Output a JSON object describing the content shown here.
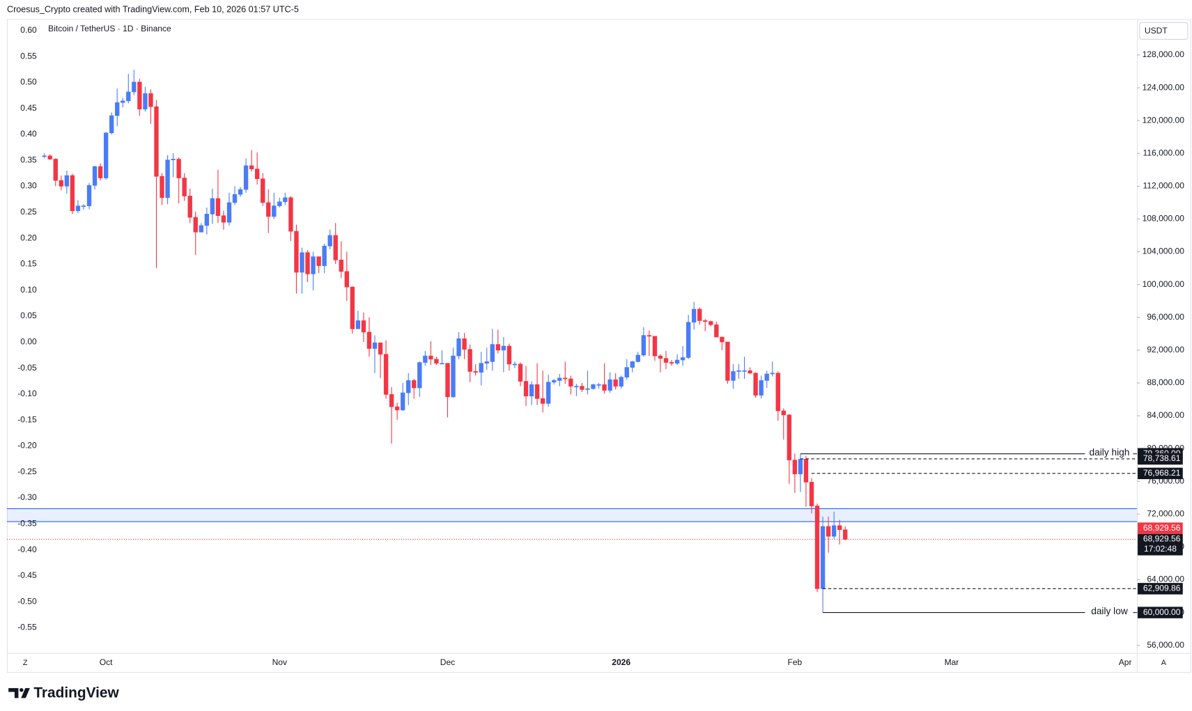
{
  "header": "Croesus_Crypto created with TradingView.com, Feb 10, 2026 01:57 UTC-5",
  "branding": "TradingView",
  "chart_data": {
    "type": "candlestick",
    "title": "Bitcoin / TetherUS · 1D · Binance",
    "currency": "USDT",
    "x_axis_buttons": {
      "left": "Z",
      "right": "A"
    },
    "up_color": "#4a7cf6",
    "down_color": "#f23645",
    "grid": false,
    "categories": [
      null,
      null,
      null,
      null,
      null,
      null,
      null,
      null,
      null,
      null,
      null,
      "Oct",
      null,
      null,
      null,
      null,
      null,
      null,
      null,
      null,
      null,
      null,
      null,
      null,
      null,
      null,
      null,
      null,
      null,
      null,
      null,
      null,
      null,
      null,
      null,
      null,
      null,
      null,
      null,
      null,
      null,
      null,
      "Nov",
      null,
      null,
      null,
      null,
      null,
      null,
      null,
      null,
      null,
      null,
      null,
      null,
      null,
      null,
      null,
      null,
      null,
      null,
      null,
      null,
      null,
      null,
      null,
      null,
      null,
      null,
      null,
      null,
      null,
      "Dec",
      null,
      null,
      null,
      null,
      null,
      null,
      null,
      null,
      null,
      null,
      null,
      null,
      null,
      null,
      null,
      null,
      null,
      null,
      null,
      null,
      null,
      null,
      null,
      null,
      null,
      null,
      null,
      null,
      null,
      null,
      "2026",
      null,
      null,
      null,
      null,
      null,
      null,
      null,
      null,
      null,
      null,
      null,
      null,
      null,
      null,
      null,
      null,
      null,
      null,
      null,
      null,
      null,
      null,
      null,
      null,
      null,
      null,
      null,
      null,
      null,
      null,
      "Feb",
      null,
      null,
      null,
      null,
      null,
      null,
      null,
      null,
      null,
      null,
      null,
      null,
      null,
      null,
      null,
      null,
      null,
      null,
      null,
      null,
      null,
      null,
      null,
      null,
      null,
      null,
      null,
      "Mar",
      null,
      null,
      null,
      null,
      null,
      null,
      null,
      null,
      null,
      null,
      null,
      null,
      null,
      null,
      null,
      null,
      null,
      null,
      null,
      null,
      null,
      null,
      null,
      null,
      null,
      null,
      null,
      null,
      null,
      null,
      "Apr"
    ],
    "candles": [
      [
        115700,
        116000,
        115400,
        115700
      ],
      [
        115700,
        115900,
        115200,
        115300
      ],
      [
        115300,
        115400,
        112000,
        112700
      ],
      [
        112700,
        113300,
        111500,
        112000
      ],
      [
        112000,
        113900,
        111100,
        113300
      ],
      [
        113300,
        113500,
        108600,
        109000
      ],
      [
        109000,
        110300,
        108700,
        109600
      ],
      [
        109600,
        109800,
        109100,
        109600
      ],
      [
        109600,
        112400,
        109200,
        112100
      ],
      [
        112100,
        114500,
        111600,
        114400
      ],
      [
        114400,
        114800,
        112700,
        113000
      ],
      [
        113000,
        118600,
        112800,
        118500
      ],
      [
        118500,
        121000,
        118300,
        120600
      ],
      [
        120600,
        123900,
        119300,
        122200
      ],
      [
        122200,
        122800,
        121600,
        122400
      ],
      [
        122400,
        125700,
        122100,
        123500
      ],
      [
        123500,
        126200,
        123100,
        124700
      ],
      [
        124700,
        125100,
        120600,
        121400
      ],
      [
        121400,
        124100,
        121100,
        123300
      ],
      [
        123300,
        123800,
        119600,
        121700
      ],
      [
        121700,
        122500,
        102000,
        113200
      ],
      [
        113200,
        113600,
        109700,
        110600
      ],
      [
        110600,
        115800,
        109800,
        115200
      ],
      [
        115200,
        116000,
        113100,
        115300
      ],
      [
        115300,
        115500,
        109900,
        113000
      ],
      [
        113000,
        113600,
        110200,
        110800
      ],
      [
        110800,
        111700,
        107500,
        108200
      ],
      [
        108200,
        108900,
        103600,
        106400
      ],
      [
        106400,
        107500,
        106400,
        107200
      ],
      [
        107200,
        109400,
        106100,
        108600
      ],
      [
        108600,
        111700,
        107400,
        110500
      ],
      [
        110500,
        114000,
        107500,
        108400
      ],
      [
        108400,
        109000,
        106700,
        107600
      ],
      [
        107600,
        111200,
        107200,
        110000
      ],
      [
        110000,
        112000,
        109700,
        111000
      ],
      [
        111000,
        111900,
        110700,
        111600
      ],
      [
        111600,
        115400,
        111200,
        114500
      ],
      [
        114500,
        116400,
        113800,
        114100
      ],
      [
        114100,
        116100,
        112200,
        112900
      ],
      [
        112900,
        113600,
        109600,
        110000
      ],
      [
        110000,
        111600,
        106300,
        108300
      ],
      [
        108300,
        111200,
        108000,
        109600
      ],
      [
        109600,
        110600,
        109400,
        110100
      ],
      [
        110100,
        111200,
        109700,
        110600
      ],
      [
        110600,
        110800,
        105300,
        106500
      ],
      [
        106500,
        107300,
        98900,
        101500
      ],
      [
        101500,
        104500,
        98900,
        103900
      ],
      [
        103900,
        104200,
        100300,
        101300
      ],
      [
        101300,
        104000,
        99300,
        103400
      ],
      [
        103400,
        103400,
        101400,
        102300
      ],
      [
        102300,
        105000,
        101400,
        104700
      ],
      [
        104700,
        106700,
        104300,
        106000
      ],
      [
        106000,
        107500,
        102500,
        103000
      ],
      [
        103000,
        105300,
        100800,
        101600
      ],
      [
        101600,
        104000,
        98000,
        99700
      ],
      [
        99700,
        99800,
        94000,
        94600
      ],
      [
        94600,
        96800,
        94600,
        95600
      ],
      [
        95600,
        96600,
        93000,
        94200
      ],
      [
        94200,
        96000,
        91200,
        92200
      ],
      [
        92200,
        93800,
        89200,
        92900
      ],
      [
        92900,
        92900,
        88600,
        91500
      ],
      [
        91500,
        93200,
        86100,
        86600
      ],
      [
        86600,
        87500,
        80600,
        85100
      ],
      [
        85100,
        85600,
        83500,
        84700
      ],
      [
        84700,
        88000,
        84600,
        86800
      ],
      [
        86800,
        89200,
        85300,
        88300
      ],
      [
        88300,
        88500,
        86100,
        87400
      ],
      [
        87400,
        90600,
        86300,
        90500
      ],
      [
        90500,
        91900,
        90100,
        91300
      ],
      [
        91300,
        93100,
        90200,
        90900
      ],
      [
        90900,
        91200,
        90200,
        90400
      ],
      [
        90400,
        92000,
        90300,
        90400
      ],
      [
        90400,
        90400,
        83800,
        86300
      ],
      [
        86300,
        92300,
        86200,
        91300
      ],
      [
        91300,
        94200,
        90900,
        93400
      ],
      [
        93400,
        94100,
        90900,
        92100
      ],
      [
        92100,
        92700,
        88100,
        89400
      ],
      [
        89400,
        90300,
        88900,
        89300
      ],
      [
        89300,
        91800,
        87700,
        90400
      ],
      [
        90400,
        92300,
        89600,
        90600
      ],
      [
        90600,
        94600,
        89500,
        92700
      ],
      [
        92700,
        94500,
        91600,
        92000
      ],
      [
        92000,
        93600,
        89300,
        92500
      ],
      [
        92500,
        92800,
        89500,
        90300
      ],
      [
        90300,
        90600,
        89800,
        90300
      ],
      [
        90300,
        90500,
        87600,
        88200
      ],
      [
        88200,
        90100,
        85200,
        86400
      ],
      [
        86400,
        88200,
        85300,
        87800
      ],
      [
        87800,
        90400,
        85300,
        86100
      ],
      [
        86100,
        89500,
        84400,
        85500
      ],
      [
        85500,
        89000,
        85100,
        88100
      ],
      [
        88100,
        88500,
        87800,
        88300
      ],
      [
        88300,
        89100,
        87600,
        88600
      ],
      [
        88600,
        90600,
        87900,
        88500
      ],
      [
        88500,
        88900,
        86600,
        87600
      ],
      [
        87600,
        87900,
        86400,
        87600
      ],
      [
        87600,
        88000,
        86900,
        87200
      ],
      [
        87200,
        89500,
        86600,
        87300
      ],
      [
        87300,
        87900,
        87200,
        87800
      ],
      [
        87800,
        88000,
        87300,
        87800
      ],
      [
        87800,
        90400,
        86700,
        87100
      ],
      [
        87100,
        89300,
        86800,
        88400
      ],
      [
        88400,
        89200,
        87200,
        87600
      ],
      [
        87600,
        88900,
        87300,
        88700
      ],
      [
        88700,
        90900,
        88400,
        89900
      ],
      [
        89900,
        90700,
        89300,
        90600
      ],
      [
        90600,
        91800,
        90500,
        91400
      ],
      [
        91400,
        94800,
        91200,
        93800
      ],
      [
        93800,
        94400,
        91300,
        93700
      ],
      [
        93700,
        93700,
        90700,
        91300
      ],
      [
        91300,
        91500,
        89300,
        91000
      ],
      [
        91000,
        91900,
        89700,
        90500
      ],
      [
        90500,
        90800,
        90100,
        90400
      ],
      [
        90400,
        91500,
        90200,
        90800
      ],
      [
        90800,
        92500,
        90100,
        91100
      ],
      [
        91100,
        96300,
        90900,
        95400
      ],
      [
        95400,
        97900,
        94500,
        97000
      ],
      [
        97000,
        97200,
        95100,
        95600
      ],
      [
        95600,
        95800,
        94300,
        95500
      ],
      [
        95500,
        95600,
        94900,
        95100
      ],
      [
        95100,
        95500,
        93600,
        93600
      ],
      [
        93600,
        93600,
        92000,
        93000
      ],
      [
        93000,
        93000,
        87900,
        88300
      ],
      [
        88300,
        90300,
        87300,
        89400
      ],
      [
        89400,
        90300,
        88500,
        89500
      ],
      [
        89500,
        91200,
        88500,
        89500
      ],
      [
        89500,
        89900,
        89100,
        89200
      ],
      [
        89200,
        89300,
        86200,
        86500
      ],
      [
        86500,
        88900,
        86100,
        88300
      ],
      [
        88300,
        89500,
        87400,
        89100
      ],
      [
        89100,
        90600,
        88800,
        89200
      ],
      [
        89200,
        89400,
        83400,
        84600
      ],
      [
        84600,
        84900,
        81100,
        84100
      ],
      [
        84100,
        84200,
        75700,
        78600
      ],
      [
        78600,
        79400,
        74600,
        76900
      ],
      [
        76900,
        79360,
        74700,
        78700
      ],
      [
        78700,
        79100,
        72900,
        75900
      ],
      [
        75900,
        76400,
        72100,
        73000
      ],
      [
        73000,
        73300,
        62500,
        62909.86
      ],
      [
        62909.86,
        71700,
        60000,
        70500
      ],
      [
        70500,
        71700,
        67300,
        69300
      ],
      [
        69300,
        72300,
        69000,
        70600
      ],
      [
        70600,
        71300,
        68300,
        70100
      ],
      [
        70100,
        70500,
        68800,
        68929.56
      ],
      null,
      null,
      null,
      null,
      null,
      null,
      null,
      null,
      null,
      null,
      null,
      null,
      null,
      null,
      null,
      null,
      null,
      null,
      null,
      null,
      null,
      null,
      null,
      null,
      null,
      null,
      null,
      null,
      null,
      null,
      null,
      null,
      null,
      null,
      null,
      null,
      null,
      null,
      null,
      null,
      null,
      null,
      null,
      null,
      null,
      null,
      null,
      null,
      null,
      null
    ],
    "ylim": [
      55070,
      132380
    ],
    "yticks": [
      {
        "value": 56000,
        "label": "56,000.00"
      },
      {
        "value": 60000,
        "label": "60,000.00"
      },
      {
        "value": 64000,
        "label": "64,000.00"
      },
      {
        "value": 68000,
        "label": "68,000.00"
      },
      {
        "value": 72000,
        "label": "72,000.00"
      },
      {
        "value": 76000,
        "label": "76,000.00"
      },
      {
        "value": 80000,
        "label": "80,000.00"
      },
      {
        "value": 84000,
        "label": "84,000.00"
      },
      {
        "value": 88000,
        "label": "88,000.00"
      },
      {
        "value": 92000,
        "label": "92,000.00"
      },
      {
        "value": 96000,
        "label": "96,000.00"
      },
      {
        "value": 100000,
        "label": "100,000.00"
      },
      {
        "value": 104000,
        "label": "104,000.00"
      },
      {
        "value": 108000,
        "label": "108,000.00"
      },
      {
        "value": 112000,
        "label": "112,000.00"
      },
      {
        "value": 116000,
        "label": "116,000.00"
      },
      {
        "value": 120000,
        "label": "120,000.00"
      },
      {
        "value": 124000,
        "label": "124,000.00"
      },
      {
        "value": 128000,
        "label": "128,000.00"
      }
    ],
    "y2lim": [
      -0.5985,
      0.622
    ],
    "y2ticks": [
      {
        "value": 0.6,
        "label": "0.60"
      },
      0.55,
      {
        "value": 0.5,
        "label": "0.50"
      },
      0.45,
      {
        "value": 0.4,
        "label": "0.40"
      },
      0.35,
      {
        "value": 0.3,
        "label": "0.30"
      },
      0.25,
      {
        "value": 0.2,
        "label": "0.20"
      },
      0.15,
      {
        "value": 0.1,
        "label": "0.10"
      },
      0.05,
      {
        "value": 0,
        "label": "0.00"
      },
      -0.05,
      {
        "value": -0.1,
        "label": "-0.10"
      },
      -0.15,
      {
        "value": -0.2,
        "label": "-0.20"
      },
      -0.25,
      {
        "value": -0.3,
        "label": "-0.30"
      },
      -0.35,
      {
        "value": -0.4,
        "label": "-0.40"
      },
      -0.45,
      {
        "value": -0.5,
        "label": "-0.50"
      },
      -0.55
    ],
    "zone": {
      "low": 71090,
      "high": 72670,
      "color": "#2962ff"
    },
    "levels": [
      {
        "name": "daily high",
        "value": 79360,
        "label": "79,360.00",
        "style": "solid"
      },
      {
        "value": 78738.61,
        "label": "78,738.61",
        "style": "dashed"
      },
      {
        "value": 76968.21,
        "label": "76,968.21",
        "style": "dashed"
      },
      {
        "value": 62909.86,
        "label": "62,909.86",
        "style": "dashed"
      },
      {
        "name": "daily low",
        "value": 60000,
        "label": "60,000.00",
        "style": "solid"
      }
    ],
    "last_price": {
      "value": 68929.56,
      "label": "68,929.56",
      "countdown": "17:02:48",
      "color": "#f23645"
    }
  }
}
